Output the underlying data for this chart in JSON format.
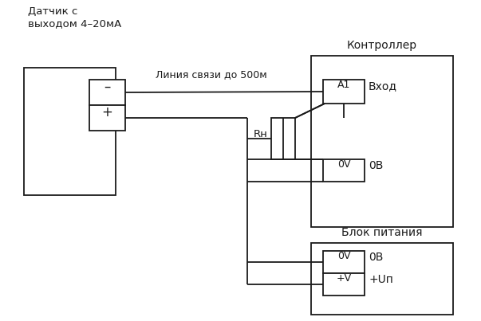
{
  "bg_color": "#ffffff",
  "line_color": "#1a1a1a",
  "sensor_label": "Датчик с\nвыходом 4–20мА",
  "controller_label": "Контроллер",
  "psu_label": "Блок питания",
  "line_label": "Линия связи до 500м",
  "a1_label": "A1",
  "vhod_label": "Вход",
  "rn_label": "Rн",
  "ov_ctrl_label": "0V",
  "ob_ctrl_label": "0В",
  "ov_psu_label": "0V",
  "ob_psu_label": "0В",
  "plusv_label": "+V",
  "plusun_label": "+Uп",
  "minus_label": "–",
  "plus_label": "+"
}
